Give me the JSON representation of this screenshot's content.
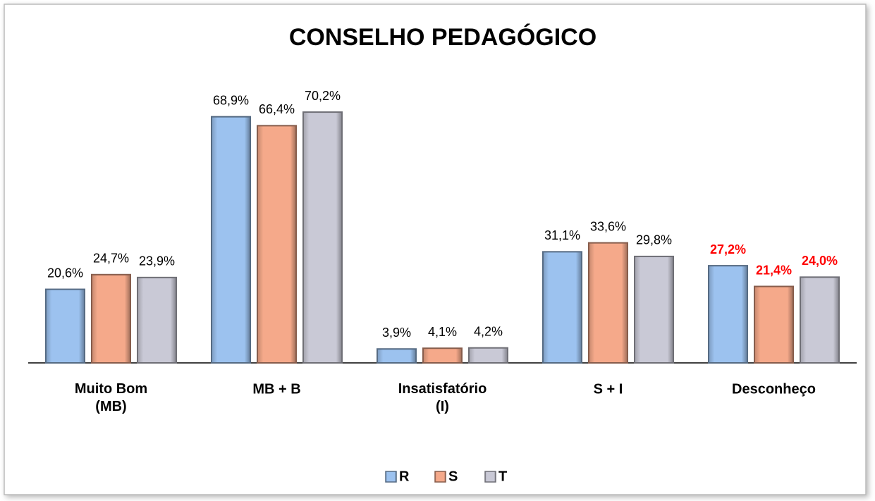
{
  "chart_data": {
    "type": "bar",
    "title": "CONSELHO PEDAGÓGICO",
    "categories": [
      "Muito Bom\n(MB)",
      "MB + B",
      "Insatisfatório\n(I)",
      "S + I",
      "Desconheço"
    ],
    "series": [
      {
        "name": "R",
        "color": "#9cc2ef",
        "values": [
          20.6,
          68.9,
          3.9,
          31.1,
          27.2
        ],
        "value_labels": [
          "20,6%",
          "68,9%",
          "3,9%",
          "31,1%",
          "27,2%"
        ]
      },
      {
        "name": "S",
        "color": "#f5a98a",
        "values": [
          24.7,
          66.4,
          4.1,
          33.6,
          21.4
        ],
        "value_labels": [
          "24,7%",
          "66,4%",
          "4,1%",
          "33,6%",
          "21,4%"
        ]
      },
      {
        "name": "T",
        "color": "#c9c9d6",
        "values": [
          23.9,
          70.2,
          4.2,
          29.8,
          24.0
        ],
        "value_labels": [
          "23,9%",
          "70,2%",
          "4,2%",
          "29,8%",
          "24,0%"
        ]
      }
    ],
    "highlight_index": 4,
    "highlight_color": "#ff0000",
    "legend": "bottom"
  }
}
